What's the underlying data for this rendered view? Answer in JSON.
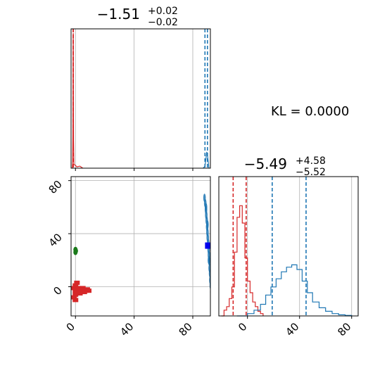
{
  "chart_data": {
    "type": "corner",
    "kl_text": "KL = 0.0000",
    "colors": {
      "red": "#d62728",
      "blue": "#1f77b4",
      "dark_blue": "#0000ee",
      "green": "#1a7a1a",
      "grid": "#b0b0b0"
    },
    "panels": [
      {
        "id": "param1-marginal",
        "title": {
          "main": "−1.51",
          "sup": "+0.02",
          "sub": "−0.02"
        },
        "xlim": [
          -3,
          92
        ],
        "grid": true,
        "series": [
          {
            "name": "",
            "color": "#d62728",
            "quantile_lines": [
              -1.53,
              -1.49
            ],
            "hist_x": [
              -2.2,
              -1.9,
              -1.7,
              -1.6,
              -1.55,
              -1.5,
              -1.45,
              -1.4,
              -1.3,
              -1.1,
              1,
              3,
              5
            ],
            "hist_y": [
              0.0,
              0.05,
              0.3,
              0.8,
              0.97,
              1.0,
              0.9,
              0.55,
              0.2,
              0.03,
              0.01,
              0.015,
              0.0
            ]
          },
          {
            "name": "",
            "color": "#1f77b4",
            "quantile_lines": [
              88.3,
              90.0
            ],
            "hist_x": [
              87,
              88,
              88.5,
              89,
              89.5,
              90,
              90.5,
              91
            ],
            "hist_y": [
              0.0,
              0.01,
              0.03,
              0.07,
              0.12,
              0.1,
              0.05,
              0.0
            ]
          }
        ]
      },
      {
        "id": "joint-2d",
        "xlim": [
          -3,
          92
        ],
        "ylim": [
          -22,
          83
        ],
        "x_ticks": [
          0,
          40,
          80
        ],
        "y_ticks": [
          0,
          40,
          80
        ],
        "grid": true,
        "red_points": [
          [
            0,
            -3
          ],
          [
            1,
            -2
          ],
          [
            2,
            -4
          ],
          [
            3,
            -3
          ],
          [
            4,
            -2
          ],
          [
            5,
            -3
          ],
          [
            6,
            -4
          ],
          [
            7,
            -3
          ],
          [
            8,
            -2
          ],
          [
            9,
            -3
          ],
          [
            -1,
            -1
          ],
          [
            0,
            1
          ],
          [
            0,
            -6
          ],
          [
            1,
            -5
          ],
          [
            -1,
            -8
          ],
          [
            0,
            -10
          ],
          [
            1,
            3
          ],
          [
            2,
            -1
          ],
          [
            3,
            -5
          ],
          [
            5,
            -1
          ]
        ],
        "green_points": [
          [
            0,
            26
          ],
          [
            0,
            28
          ],
          [
            0.3,
            27
          ]
        ],
        "blue_points": [
          [
            88,
            67
          ],
          [
            88.5,
            63
          ],
          [
            89,
            58
          ],
          [
            89.2,
            54
          ],
          [
            89.5,
            50
          ],
          [
            89.8,
            45
          ],
          [
            90,
            41
          ],
          [
            90.2,
            37
          ],
          [
            90.5,
            33
          ],
          [
            90.8,
            28
          ],
          [
            91,
            24
          ],
          [
            91.3,
            19
          ],
          [
            91.5,
            14
          ],
          [
            91.8,
            10
          ],
          [
            92,
            5
          ],
          [
            92.3,
            1
          ],
          [
            92.6,
            -4
          ],
          [
            89,
            60
          ],
          [
            90,
            47
          ],
          [
            91,
            20
          ]
        ],
        "blue_marker": [
          [
            90.5,
            31
          ]
        ]
      },
      {
        "id": "param2-marginal",
        "title": {
          "main": "−5.49",
          "sup": "+4.58",
          "sub": "−5.52"
        },
        "xlim": [
          -22,
          85
        ],
        "x_ticks": [
          0,
          40,
          80
        ],
        "grid": true,
        "series": [
          {
            "name": "",
            "color": "#d62728",
            "quantile_lines": [
              -11.0,
              -1.0
            ],
            "hist_x": [
              -20,
              -18,
              -16,
              -14,
              -12,
              -10,
              -8,
              -6,
              -4,
              -2,
              0,
              2,
              4,
              6,
              8,
              10,
              12
            ],
            "hist_y": [
              0.0,
              0.05,
              0.08,
              0.15,
              0.25,
              0.55,
              0.85,
              0.95,
              0.8,
              0.5,
              0.3,
              0.2,
              0.12,
              0.08,
              0.04,
              0.02,
              0.0
            ]
          },
          {
            "name": "",
            "color": "#1f77b4",
            "quantile_lines": [
              19.0,
              45.0
            ],
            "hist_x": [
              -8,
              0,
              5,
              10,
              14,
              18,
              22,
              26,
              30,
              34,
              38,
              42,
              46,
              50,
              55,
              60,
              65,
              70,
              75,
              80
            ],
            "hist_y": [
              0.0,
              0.02,
              0.05,
              0.1,
              0.18,
              0.25,
              0.32,
              0.38,
              0.42,
              0.44,
              0.4,
              0.3,
              0.2,
              0.12,
              0.07,
              0.04,
              0.02,
              0.01,
              0.005,
              0.0
            ]
          }
        ]
      }
    ]
  }
}
